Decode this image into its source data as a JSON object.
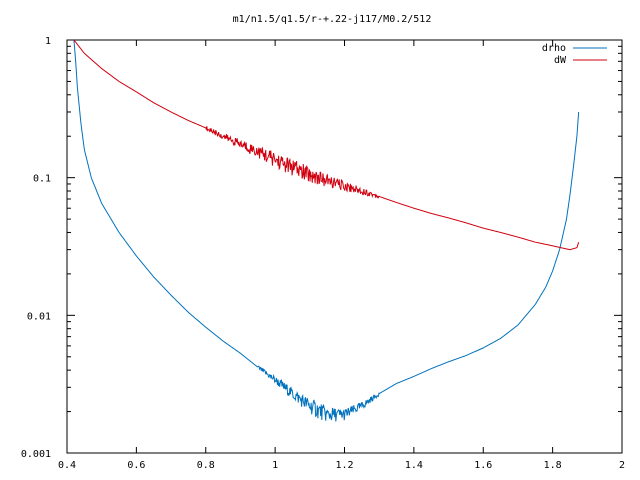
{
  "chart_data": {
    "type": "line",
    "title": "m1/n1.5/q1.5/r-+.22-j117/M0.2/512",
    "xlabel": "",
    "ylabel": "",
    "xlim": [
      0.4,
      2
    ],
    "ylim": [
      0.001,
      1
    ],
    "yscale": "log",
    "grid": false,
    "legend_position": "top-right",
    "x_ticks": [
      "0.4",
      "0.6",
      "0.8",
      "1",
      "1.2",
      "1.4",
      "1.6",
      "1.8",
      "2"
    ],
    "y_ticks": [
      "0.001",
      "0.01",
      "0.1",
      "1"
    ],
    "series": [
      {
        "name": "drho",
        "color": "#0072bd",
        "noisy_x_range": [
          0.95,
          1.3
        ],
        "x": [
          0.42,
          0.425,
          0.43,
          0.44,
          0.45,
          0.47,
          0.5,
          0.55,
          0.6,
          0.65,
          0.7,
          0.75,
          0.8,
          0.85,
          0.9,
          0.95,
          1.0,
          1.05,
          1.1,
          1.15,
          1.2,
          1.25,
          1.3,
          1.35,
          1.4,
          1.45,
          1.5,
          1.55,
          1.6,
          1.65,
          1.7,
          1.75,
          1.78,
          1.8,
          1.82,
          1.84,
          1.85,
          1.86,
          1.87,
          1.875
        ],
        "y": [
          1.0,
          0.7,
          0.45,
          0.25,
          0.16,
          0.1,
          0.065,
          0.04,
          0.027,
          0.019,
          0.014,
          0.0105,
          0.0082,
          0.0065,
          0.0053,
          0.0042,
          0.0034,
          0.0027,
          0.0022,
          0.0019,
          0.0019,
          0.0022,
          0.0027,
          0.0032,
          0.0036,
          0.0041,
          0.0046,
          0.0051,
          0.0058,
          0.0068,
          0.0085,
          0.012,
          0.016,
          0.021,
          0.03,
          0.05,
          0.075,
          0.12,
          0.2,
          0.3
        ]
      },
      {
        "name": "dW",
        "color": "#d0000f",
        "noisy_x_range": [
          0.8,
          1.3
        ],
        "x": [
          0.42,
          0.45,
          0.5,
          0.55,
          0.6,
          0.65,
          0.7,
          0.75,
          0.8,
          0.85,
          0.9,
          0.95,
          1.0,
          1.05,
          1.1,
          1.15,
          1.2,
          1.25,
          1.3,
          1.35,
          1.4,
          1.45,
          1.5,
          1.55,
          1.6,
          1.65,
          1.7,
          1.75,
          1.8,
          1.85,
          1.87,
          1.875
        ],
        "y": [
          1.0,
          0.8,
          0.62,
          0.5,
          0.42,
          0.35,
          0.3,
          0.26,
          0.23,
          0.2,
          0.175,
          0.155,
          0.135,
          0.118,
          0.105,
          0.095,
          0.087,
          0.08,
          0.073,
          0.066,
          0.06,
          0.055,
          0.051,
          0.047,
          0.043,
          0.04,
          0.037,
          0.034,
          0.032,
          0.03,
          0.031,
          0.034
        ]
      }
    ]
  }
}
